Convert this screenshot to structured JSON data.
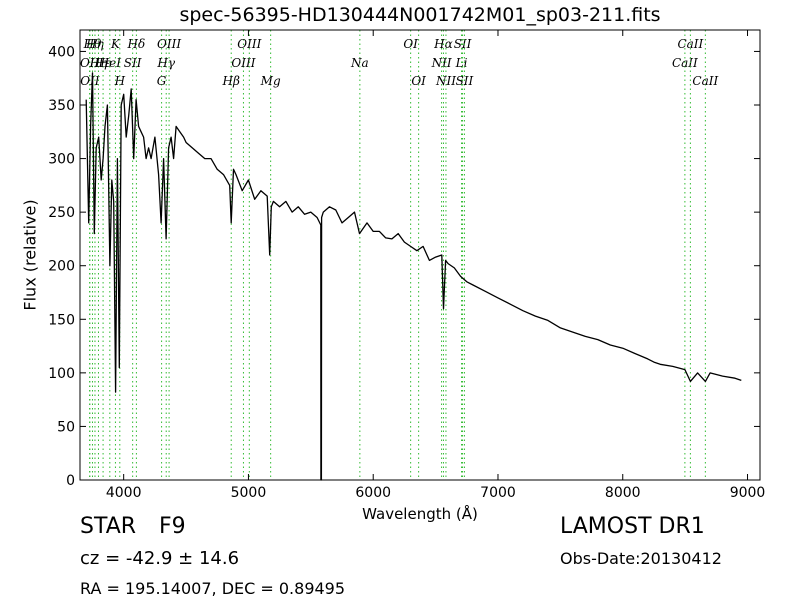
{
  "chart_data": {
    "type": "line",
    "title": "spec-56395-HD130444N001742M01_sp03-211.fits",
    "xlabel": "Wavelength (Å)",
    "ylabel": "Flux (relative)",
    "xlim": [
      3650,
      9100
    ],
    "ylim": [
      0,
      420
    ],
    "xticks": [
      4000,
      5000,
      6000,
      7000,
      8000,
      9000
    ],
    "yticks": [
      0,
      50,
      100,
      150,
      200,
      250,
      300,
      350,
      400
    ],
    "grid": false,
    "line_color": "#000000",
    "marker_color": "#33bb33",
    "series": [
      {
        "x": [
          3700,
          3720,
          3735,
          3750,
          3765,
          3780,
          3800,
          3820,
          3835,
          3850,
          3870,
          3890,
          3905,
          3920,
          3935,
          3950,
          3965,
          3980,
          4000,
          4020,
          4040,
          4060,
          4080,
          4100,
          4120,
          4140,
          4160,
          4180,
          4200,
          4220,
          4250,
          4280,
          4300,
          4320,
          4340,
          4360,
          4380,
          4400,
          4420,
          4450,
          4480,
          4500,
          4550,
          4600,
          4650,
          4700,
          4750,
          4800,
          4850,
          4862,
          4880,
          4900,
          4950,
          5000,
          5050,
          5100,
          5150,
          5170,
          5183,
          5200,
          5250,
          5300,
          5350,
          5400,
          5450,
          5500,
          5550,
          5580,
          5581,
          5585,
          5586,
          5600,
          5650,
          5700,
          5750,
          5800,
          5850,
          5890,
          5950,
          6000,
          6050,
          6100,
          6150,
          6200,
          6250,
          6300,
          6350,
          6400,
          6450,
          6500,
          6550,
          6563,
          6580,
          6600,
          6650,
          6700,
          6750,
          6800,
          6900,
          7000,
          7100,
          7200,
          7300,
          7400,
          7500,
          7600,
          7700,
          7800,
          7900,
          8000,
          8100,
          8200,
          8250,
          8300,
          8400,
          8498,
          8542,
          8600,
          8662,
          8700,
          8800,
          8900,
          8950
        ],
        "y": [
          355,
          240,
          330,
          380,
          230,
          310,
          320,
          280,
          300,
          330,
          350,
          200,
          280,
          260,
          82,
          300,
          105,
          350,
          360,
          320,
          340,
          365,
          300,
          355,
          330,
          325,
          320,
          300,
          310,
          300,
          320,
          285,
          240,
          300,
          225,
          310,
          320,
          300,
          330,
          325,
          320,
          315,
          310,
          305,
          300,
          300,
          290,
          285,
          275,
          240,
          290,
          285,
          270,
          280,
          262,
          270,
          265,
          210,
          255,
          260,
          255,
          260,
          250,
          255,
          248,
          250,
          245,
          238,
          0,
          0,
          245,
          250,
          255,
          252,
          240,
          245,
          250,
          230,
          240,
          232,
          232,
          226,
          225,
          230,
          222,
          218,
          214,
          218,
          205,
          208,
          210,
          160,
          205,
          202,
          198,
          190,
          185,
          182,
          176,
          170,
          164,
          158,
          153,
          149,
          142,
          138,
          134,
          131,
          126,
          123,
          118,
          113,
          110,
          108,
          106,
          103,
          92,
          100,
          92,
          100,
          97,
          95,
          93
        ]
      }
    ],
    "line_markers": [
      {
        "x": 3727,
        "label": "OII",
        "row": 1
      },
      {
        "x": 3729,
        "label": "OII",
        "row": 2
      },
      {
        "x": 3750,
        "label": "Hθ",
        "row": 0
      },
      {
        "x": 3770,
        "label": "Hη",
        "row": 0
      },
      {
        "x": 3798,
        "label": "Hη",
        "row": 1
      },
      {
        "x": 3835,
        "label": "Hε",
        "row": 1
      },
      {
        "x": 3889,
        "label": "HeI",
        "row": 1
      },
      {
        "x": 3934,
        "label": "K",
        "row": 0
      },
      {
        "x": 3969,
        "label": "H",
        "row": 2
      },
      {
        "x": 4072,
        "label": "SII",
        "row": 1
      },
      {
        "x": 4102,
        "label": "Hδ",
        "row": 0
      },
      {
        "x": 4304,
        "label": "G",
        "row": 2
      },
      {
        "x": 4341,
        "label": "Hγ",
        "row": 1
      },
      {
        "x": 4364,
        "label": "OIII",
        "row": 0
      },
      {
        "x": 4862,
        "label": "Hβ",
        "row": 2
      },
      {
        "x": 4960,
        "label": "OIII",
        "row": 1
      },
      {
        "x": 5007,
        "label": "OIII",
        "row": 0
      },
      {
        "x": 5178,
        "label": "Mg",
        "row": 2
      },
      {
        "x": 5893,
        "label": "Na",
        "row": 1
      },
      {
        "x": 6300,
        "label": "OI",
        "row": 0
      },
      {
        "x": 6364,
        "label": "OI",
        "row": 2
      },
      {
        "x": 6548,
        "label": "NII",
        "row": 1
      },
      {
        "x": 6563,
        "label": "Hα",
        "row": 0
      },
      {
        "x": 6583,
        "label": "NII",
        "row": 2
      },
      {
        "x": 6708,
        "label": "Li",
        "row": 1
      },
      {
        "x": 6716,
        "label": "SII",
        "row": 0
      },
      {
        "x": 6731,
        "label": "SII",
        "row": 2
      },
      {
        "x": 8498,
        "label": "CaII",
        "row": 1
      },
      {
        "x": 8542,
        "label": "CaII",
        "row": 0
      },
      {
        "x": 8662,
        "label": "CaII",
        "row": 2
      }
    ]
  },
  "info": {
    "object_class": "STAR",
    "subclass": "F9",
    "redshift": "cz = -42.9 ± 14.6",
    "coords": "RA = 195.14007, DEC = 0.89495",
    "survey": "LAMOST DR1",
    "obs_date": "Obs-Date:20130412"
  }
}
